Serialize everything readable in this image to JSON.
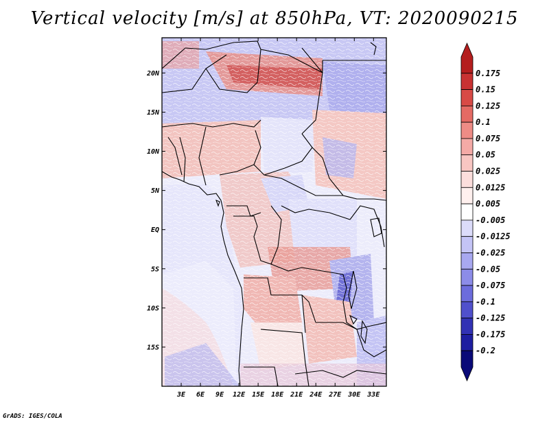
{
  "title": "Vertical velocity [m/s] at 850hPa, VT: 2020090215",
  "credit": "GrADS: IGES/COLA",
  "map": {
    "variable": "Vertical velocity",
    "units": "m/s",
    "level": "850hPa",
    "valid_time": "2020090215",
    "lon_range": [
      0,
      35
    ],
    "lat_range": [
      -20,
      24.5
    ],
    "lon_ticks": [
      {
        "value": 3,
        "label": "3E"
      },
      {
        "value": 6,
        "label": "6E"
      },
      {
        "value": 9,
        "label": "9E"
      },
      {
        "value": 12,
        "label": "12E"
      },
      {
        "value": 15,
        "label": "15E"
      },
      {
        "value": 18,
        "label": "18E"
      },
      {
        "value": 21,
        "label": "21E"
      },
      {
        "value": 24,
        "label": "24E"
      },
      {
        "value": 27,
        "label": "27E"
      },
      {
        "value": 30,
        "label": "30E"
      },
      {
        "value": 33,
        "label": "33E"
      }
    ],
    "lat_ticks": [
      {
        "value": 20,
        "label": "20N"
      },
      {
        "value": 15,
        "label": "15N"
      },
      {
        "value": 10,
        "label": "10N"
      },
      {
        "value": 5,
        "label": "5N"
      },
      {
        "value": 0,
        "label": "EQ"
      },
      {
        "value": -5,
        "label": "5S"
      },
      {
        "value": -10,
        "label": "10S"
      },
      {
        "value": -15,
        "label": "15S"
      }
    ]
  },
  "colorbar": {
    "labels": [
      "0.175",
      "0.15",
      "0.125",
      "0.1",
      "0.075",
      "0.05",
      "0.025",
      "0.0125",
      "0.005",
      "-0.005",
      "-0.0125",
      "-0.025",
      "-0.05",
      "-0.075",
      "-0.1",
      "-0.125",
      "-0.175",
      "-0.2"
    ],
    "colors": [
      "#b41e1e",
      "#c83232",
      "#d84a46",
      "#e46a64",
      "#ee8c86",
      "#f4aaa6",
      "#f8c6c2",
      "#fcdedc",
      "#fff0ee",
      "#ffffff",
      "#dcdcfa",
      "#c4c4f6",
      "#a8a8f0",
      "#8c8ce8",
      "#6c6cdc",
      "#5050cc",
      "#3232b4",
      "#1e1ea0",
      "#0a0a78"
    ]
  }
}
